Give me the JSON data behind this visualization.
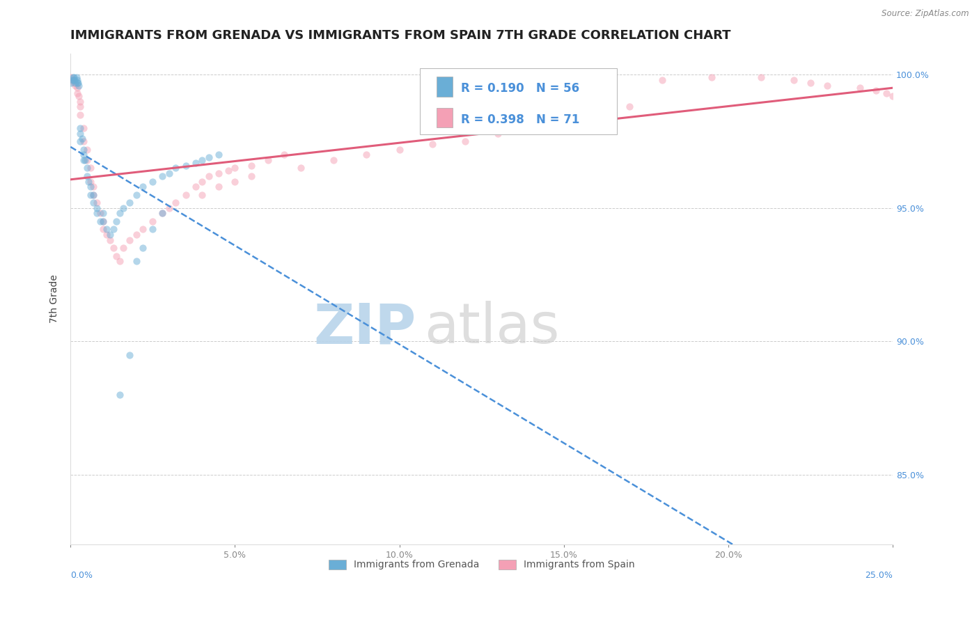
{
  "title": "IMMIGRANTS FROM GRENADA VS IMMIGRANTS FROM SPAIN 7TH GRADE CORRELATION CHART",
  "source_text": "Source: ZipAtlas.com",
  "ylabel": "7th Grade",
  "legend_labels": [
    "Immigrants from Grenada",
    "Immigrants from Spain"
  ],
  "r_grenada": 0.19,
  "n_grenada": 56,
  "r_spain": 0.398,
  "n_spain": 71,
  "color_grenada": "#6aaed6",
  "color_spain": "#f4a0b5",
  "color_grenada_line": "#4a90d9",
  "color_spain_line": "#e05c7a",
  "xmin": 0.0,
  "xmax": 0.25,
  "ymin": 0.824,
  "ymax": 1.008,
  "yticks": [
    0.85,
    0.9,
    0.95,
    1.0
  ],
  "ytick_labels": [
    "85.0%",
    "90.0%",
    "95.0%",
    "100.0%"
  ],
  "xticks": [
    0.0,
    0.05,
    0.1,
    0.15,
    0.2,
    0.25
  ],
  "xtick_labels": [
    "0.0%",
    "5.0%",
    "10.0%",
    "15.0%",
    "20.0%",
    "25.0%"
  ],
  "grenada_x": [
    0.0002,
    0.0005,
    0.0008,
    0.001,
    0.001,
    0.0012,
    0.0015,
    0.0018,
    0.002,
    0.002,
    0.0022,
    0.0025,
    0.003,
    0.003,
    0.003,
    0.0035,
    0.004,
    0.004,
    0.004,
    0.0045,
    0.005,
    0.005,
    0.0055,
    0.006,
    0.006,
    0.007,
    0.007,
    0.008,
    0.008,
    0.009,
    0.01,
    0.01,
    0.011,
    0.012,
    0.013,
    0.014,
    0.015,
    0.016,
    0.018,
    0.02,
    0.022,
    0.025,
    0.028,
    0.03,
    0.032,
    0.035,
    0.038,
    0.04,
    0.042,
    0.045,
    0.015,
    0.018,
    0.02,
    0.022,
    0.025,
    0.028
  ],
  "grenada_y": [
    0.997,
    0.998,
    0.999,
    0.999,
    0.998,
    0.998,
    0.997,
    0.999,
    0.997,
    0.998,
    0.997,
    0.996,
    0.975,
    0.978,
    0.98,
    0.976,
    0.97,
    0.968,
    0.972,
    0.968,
    0.965,
    0.962,
    0.96,
    0.958,
    0.955,
    0.952,
    0.955,
    0.95,
    0.948,
    0.945,
    0.945,
    0.948,
    0.942,
    0.94,
    0.942,
    0.945,
    0.948,
    0.95,
    0.952,
    0.955,
    0.958,
    0.96,
    0.962,
    0.963,
    0.965,
    0.966,
    0.967,
    0.968,
    0.969,
    0.97,
    0.88,
    0.895,
    0.93,
    0.935,
    0.942,
    0.948
  ],
  "spain_x": [
    0.0002,
    0.0005,
    0.001,
    0.001,
    0.0015,
    0.002,
    0.002,
    0.0025,
    0.003,
    0.003,
    0.003,
    0.004,
    0.004,
    0.005,
    0.005,
    0.006,
    0.006,
    0.007,
    0.007,
    0.008,
    0.009,
    0.01,
    0.01,
    0.011,
    0.012,
    0.013,
    0.014,
    0.015,
    0.016,
    0.018,
    0.02,
    0.022,
    0.025,
    0.028,
    0.03,
    0.032,
    0.035,
    0.038,
    0.04,
    0.042,
    0.045,
    0.048,
    0.05,
    0.055,
    0.06,
    0.065,
    0.04,
    0.045,
    0.05,
    0.055,
    0.18,
    0.195,
    0.21,
    0.22,
    0.225,
    0.23,
    0.24,
    0.245,
    0.248,
    0.25,
    0.12,
    0.13,
    0.14,
    0.15,
    0.16,
    0.17,
    0.1,
    0.11,
    0.08,
    0.09,
    0.07
  ],
  "spain_y": [
    0.999,
    0.998,
    0.998,
    0.997,
    0.996,
    0.995,
    0.993,
    0.992,
    0.99,
    0.988,
    0.985,
    0.98,
    0.975,
    0.972,
    0.968,
    0.965,
    0.96,
    0.958,
    0.955,
    0.952,
    0.948,
    0.945,
    0.942,
    0.94,
    0.938,
    0.935,
    0.932,
    0.93,
    0.935,
    0.938,
    0.94,
    0.942,
    0.945,
    0.948,
    0.95,
    0.952,
    0.955,
    0.958,
    0.96,
    0.962,
    0.963,
    0.964,
    0.965,
    0.966,
    0.968,
    0.97,
    0.955,
    0.958,
    0.96,
    0.962,
    0.998,
    0.999,
    0.999,
    0.998,
    0.997,
    0.996,
    0.995,
    0.994,
    0.993,
    0.992,
    0.975,
    0.978,
    0.98,
    0.982,
    0.985,
    0.988,
    0.972,
    0.974,
    0.968,
    0.97,
    0.965
  ],
  "background_color": "#ffffff",
  "grid_color": "#cccccc",
  "title_fontsize": 13,
  "axis_label_fontsize": 10,
  "tick_fontsize": 9,
  "legend_fontsize": 10,
  "dot_size": 55,
  "dot_alpha": 0.5,
  "watermark_zip": "ZIP",
  "watermark_atlas": "atlas",
  "watermark_color_zip": "#b8d4ea",
  "watermark_color_atlas": "#c8c8c8",
  "watermark_fontsize": 58
}
